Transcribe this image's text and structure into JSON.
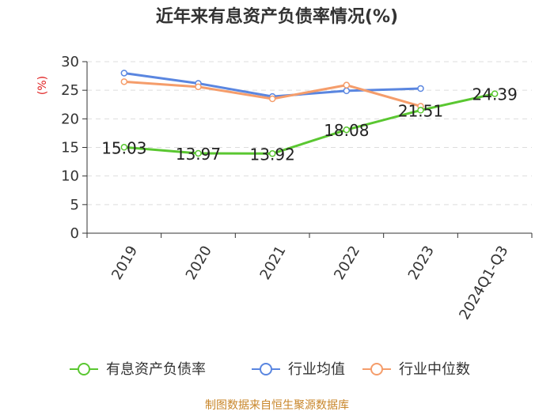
{
  "chart_data": {
    "type": "line",
    "title": "近年来有息资产负债率情况(%)",
    "ylabel": "(%)",
    "categories": [
      "2019",
      "2020",
      "2021",
      "2022",
      "2023",
      "2024Q1-Q3"
    ],
    "ylim": [
      0,
      30
    ],
    "yticks": [
      0,
      5,
      10,
      15,
      20,
      25,
      30
    ],
    "grid": true,
    "legend_position": "bottom",
    "series": [
      {
        "name": "有息资产负债率",
        "color": "#5ac731",
        "values": [
          15.03,
          13.97,
          13.92,
          18.08,
          21.51,
          24.39
        ],
        "labels": [
          "15.03",
          "13.97",
          "13.92",
          "18.08",
          "21.51",
          "24.39"
        ]
      },
      {
        "name": "行业均值",
        "color": "#5a86e0",
        "values": [
          28.0,
          26.2,
          23.9,
          24.9,
          25.3,
          null
        ]
      },
      {
        "name": "行业中位数",
        "color": "#f59d6b",
        "values": [
          26.5,
          25.6,
          23.5,
          25.9,
          22.2,
          null
        ]
      }
    ]
  },
  "footer": "制图数据来自恒生聚源数据库"
}
